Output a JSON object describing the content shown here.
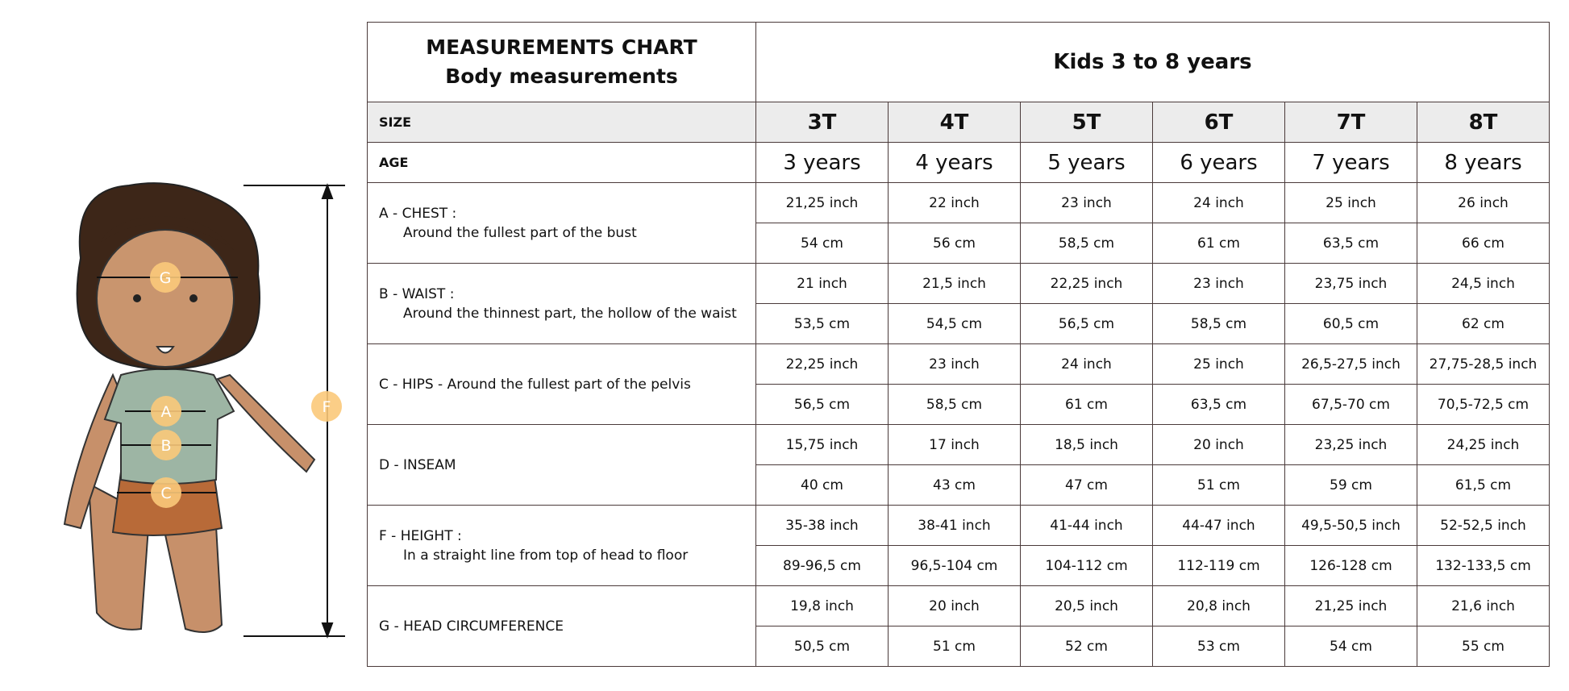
{
  "header": {
    "title": "MEASUREMENTS CHART",
    "subtitle": "Body measurements",
    "group": "Kids 3 to 8 years"
  },
  "table": {
    "size_label": "SIZE",
    "sizes": [
      "3T",
      "4T",
      "5T",
      "6T",
      "7T",
      "8T"
    ],
    "age_label": "AGE",
    "ages": [
      "3 years",
      "4 years",
      "5 years",
      "6 years",
      "7 years",
      "8 years"
    ],
    "measurements": [
      {
        "label": "A - CHEST :",
        "description": "Around the fullest part of the bust",
        "inch": [
          "21,25 inch",
          "22 inch",
          "23 inch",
          "24 inch",
          "25 inch",
          "26 inch"
        ],
        "cm": [
          "54 cm",
          "56 cm",
          "58,5 cm",
          "61 cm",
          "63,5 cm",
          "66 cm"
        ]
      },
      {
        "label": "B - WAIST :",
        "description": "Around the thinnest part, the hollow of the waist",
        "inch": [
          "21 inch",
          "21,5 inch",
          "22,25 inch",
          "23 inch",
          "23,75 inch",
          "24,5 inch"
        ],
        "cm": [
          "53,5 cm",
          "54,5 cm",
          "56,5 cm",
          "58,5 cm",
          "60,5 cm",
          "62 cm"
        ]
      },
      {
        "label": "C - HIPS - Around the fullest part of the pelvis",
        "inch": [
          "22,25 inch",
          "23 inch",
          "24 inch",
          "25 inch",
          "26,5-27,5 inch",
          "27,75-28,5 inch"
        ],
        "cm": [
          "56,5 cm",
          "58,5 cm",
          "61 cm",
          "63,5 cm",
          "67,5-70 cm",
          "70,5-72,5 cm"
        ]
      },
      {
        "label": "D - INSEAM",
        "inch": [
          "15,75 inch",
          "17 inch",
          "18,5 inch",
          "20 inch",
          "23,25 inch",
          "24,25 inch"
        ],
        "cm": [
          "40 cm",
          "43 cm",
          "47 cm",
          "51 cm",
          "59 cm",
          "61,5 cm"
        ]
      },
      {
        "label": "F - HEIGHT :",
        "description": "In a straight line from top of head to floor",
        "inch": [
          "35-38 inch",
          "38-41 inch",
          "41-44 inch",
          "44-47 inch",
          "49,5-50,5 inch",
          "52-52,5 inch"
        ],
        "cm": [
          "89-96,5 cm",
          "96,5-104 cm",
          "104-112 cm",
          "112-119 cm",
          "126-128 cm",
          "132-133,5 cm"
        ]
      },
      {
        "label": "G - HEAD CIRCUMFERENCE",
        "inch": [
          "19,8 inch",
          "20 inch",
          "20,5 inch",
          "20,8 inch",
          "21,25 inch",
          "21,6 inch"
        ],
        "cm": [
          "50,5 cm",
          "51 cm",
          "52 cm",
          "53 cm",
          "54 cm",
          "55 cm"
        ]
      }
    ]
  },
  "illustration": {
    "markers": [
      "G",
      "A",
      "B",
      "C",
      "F"
    ]
  }
}
